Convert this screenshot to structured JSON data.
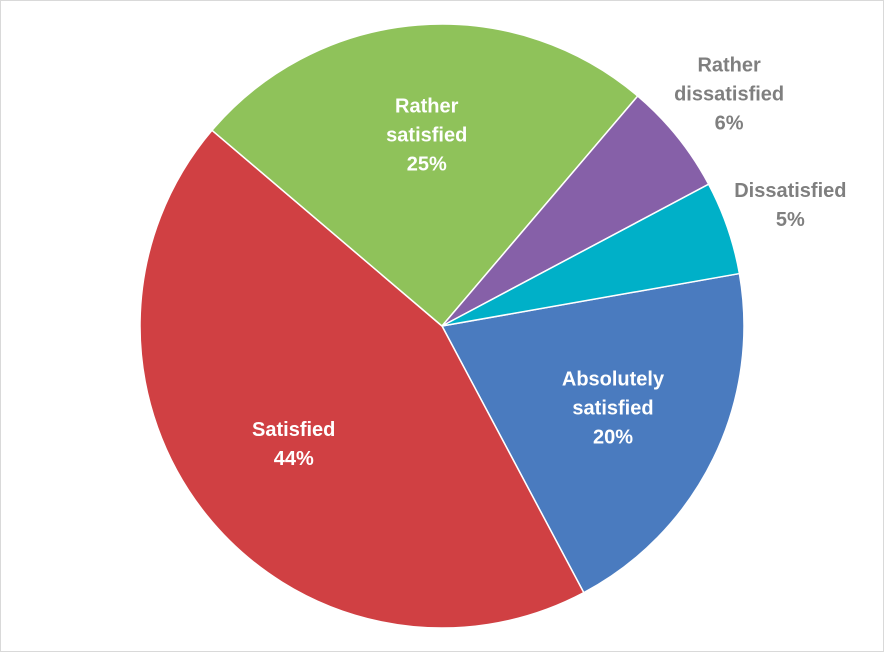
{
  "chart_data": {
    "type": "pie",
    "categories": [
      "Absolutely satisfied",
      "Satisfied",
      "Rather satisfied",
      "Rather dissatisfied",
      "Dissatisfied"
    ],
    "values": [
      20,
      44,
      25,
      6,
      5
    ],
    "value_labels": [
      "20%",
      "44%",
      "25%",
      "6%",
      "5%"
    ],
    "colors": [
      "#4a7bbf",
      "#d04043",
      "#8fc25a",
      "#8660a8",
      "#00b0c8"
    ]
  }
}
